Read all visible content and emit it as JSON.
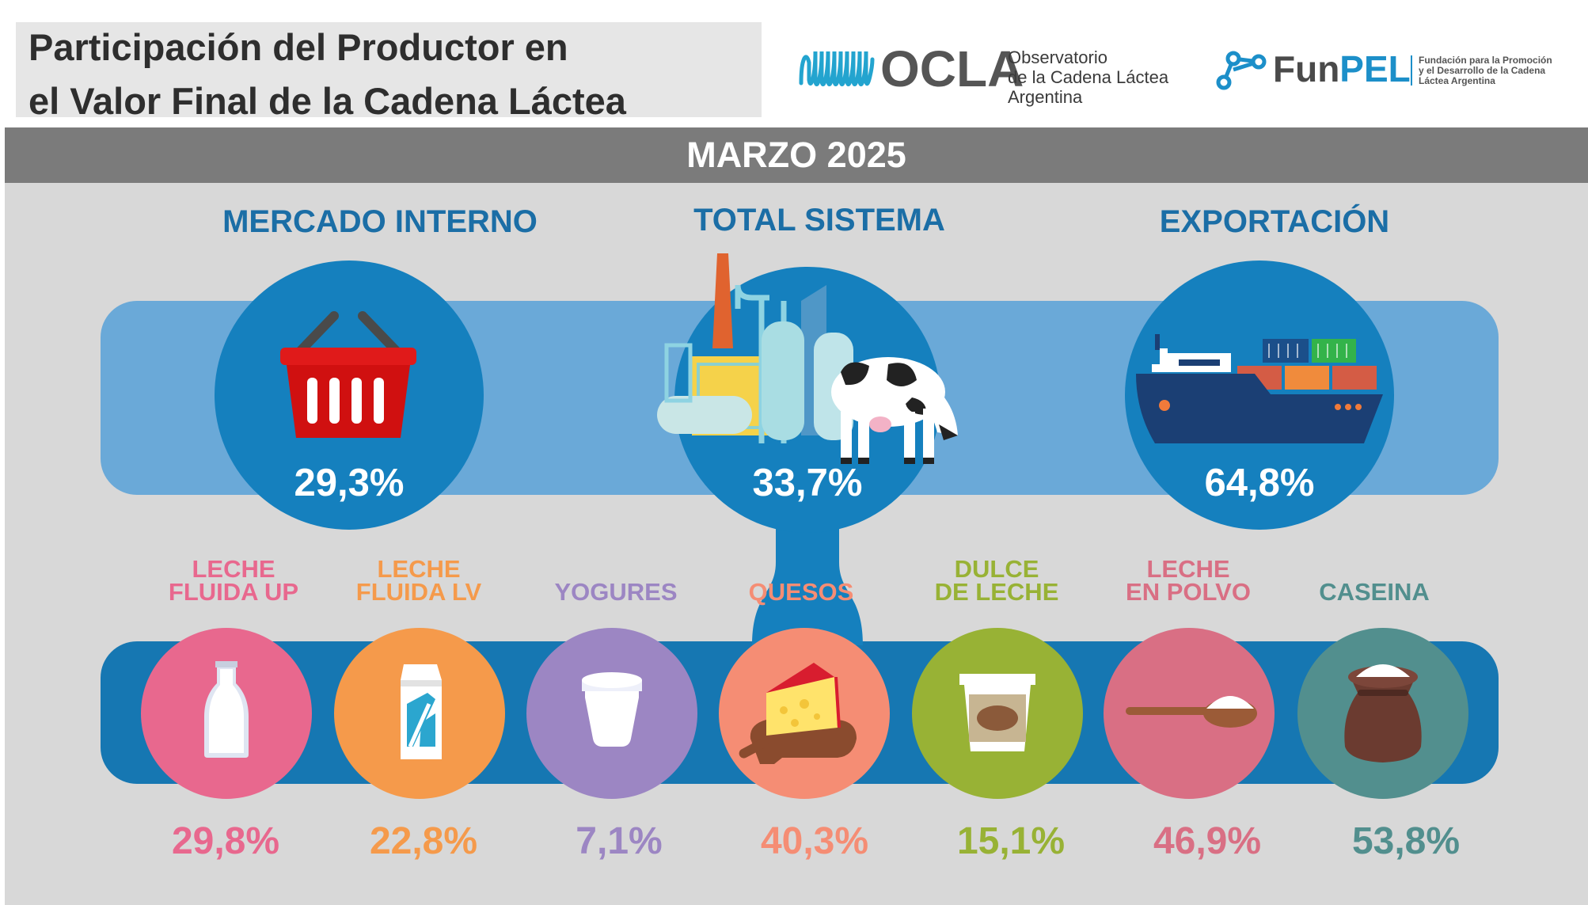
{
  "header": {
    "title_line1": "Participación del Productor en",
    "title_line2": "el Valor Final de la Cadena Láctea",
    "ocla": {
      "name": "OCLA",
      "line1": "Observatorio",
      "line2": "de la Cadena Láctea",
      "line3": "Argentina",
      "icon": "milk-wave-logo-icon"
    },
    "funpel": {
      "name_a": "Fun",
      "name_b": "PEL",
      "line1": "Fundación para la Promoción",
      "line2": "y el Desarrollo de la Cadena",
      "line3": "Láctea Argentina",
      "icon": "network-nodes-logo-icon"
    }
  },
  "date_label": "MARZO 2025",
  "sections": [
    {
      "title": "MERCADO INTERNO",
      "value": "29,3%",
      "icon": "shopping-basket-icon"
    },
    {
      "title": "TOTAL SISTEMA",
      "value": "33,7%",
      "icon": "dairy-factory-cow-icon"
    },
    {
      "title": "EXPORTACIÓN",
      "value": "64,8%",
      "icon": "cargo-ship-icon"
    }
  ],
  "products": [
    {
      "line1": "LECHE",
      "line2": "FLUIDA UP",
      "value": "29,8%",
      "color": "#e8688e",
      "icon": "milk-bottle-icon"
    },
    {
      "line1": "LECHE",
      "line2": "FLUIDA LV",
      "value": "22,8%",
      "color": "#f59a4b",
      "icon": "milk-carton-icon"
    },
    {
      "line1": "",
      "line2": "YOGURES",
      "value": "7,1%",
      "color": "#9c86c3",
      "icon": "yogurt-cup-icon"
    },
    {
      "line1": "",
      "line2": "QUESOS",
      "value": "40,3%",
      "color": "#f58d74",
      "icon": "cheese-board-icon"
    },
    {
      "line1": "DULCE",
      "line2": "DE LECHE",
      "value": "15,1%",
      "color": "#98b235",
      "icon": "dulce-de-leche-jar-icon"
    },
    {
      "line1": "LECHE",
      "line2": "EN POLVO",
      "value": "46,9%",
      "color": "#d96f84",
      "icon": "powder-spoon-icon"
    },
    {
      "line1": "",
      "line2": "CASEINA",
      "value": "53,8%",
      "color": "#528f8e",
      "icon": "casein-sack-icon"
    }
  ]
}
